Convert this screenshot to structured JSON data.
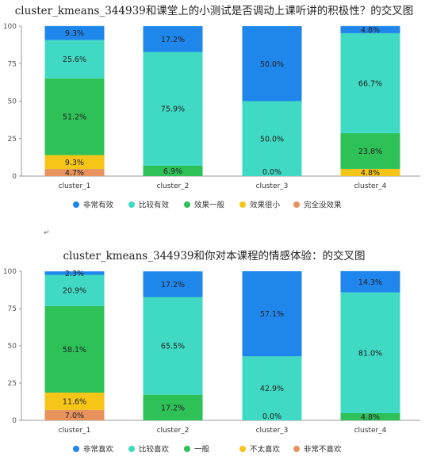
{
  "colors": [
    "#1f86ec",
    "#3fd9c4",
    "#2ec158",
    "#f5c518",
    "#e7935b"
  ],
  "between_text": "↵",
  "chart_data": [
    {
      "type": "bar",
      "stacked": true,
      "title": "cluster_kmeans_344939和课堂上的小测试是否调动上课听讲的积极性？的交叉图",
      "categories": [
        "cluster_1",
        "cluster_2",
        "cluster_3",
        "cluster_4"
      ],
      "ylim": [
        0,
        100
      ],
      "yticks": [
        0,
        25,
        50,
        75,
        100
      ],
      "grid": false,
      "legend": "bottom",
      "series": [
        {
          "name": "非常有效",
          "values": [
            9.3,
            17.2,
            50.0,
            4.8
          ]
        },
        {
          "name": "比较有效",
          "values": [
            25.6,
            75.9,
            50.0,
            66.7
          ]
        },
        {
          "name": "效果一般",
          "values": [
            51.2,
            6.9,
            0.0,
            23.8
          ]
        },
        {
          "name": "效果很小",
          "values": [
            9.3,
            0.0,
            0.0,
            4.8
          ]
        },
        {
          "name": "完全没效果",
          "values": [
            4.7,
            0.0,
            0.0,
            0.0
          ]
        }
      ]
    },
    {
      "type": "bar",
      "stacked": true,
      "title": "cluster_kmeans_344939和你对本课程的情感体验：的交叉图",
      "categories": [
        "cluster_1",
        "cluster_2",
        "cluster_3",
        "cluster_4"
      ],
      "ylim": [
        0,
        100
      ],
      "yticks": [
        0,
        25,
        50,
        75,
        100
      ],
      "grid": false,
      "legend": "bottom",
      "series": [
        {
          "name": "非常喜欢",
          "values": [
            2.3,
            17.2,
            57.1,
            14.3
          ]
        },
        {
          "name": "比较喜欢",
          "values": [
            20.9,
            65.5,
            42.9,
            81.0
          ]
        },
        {
          "name": "一般",
          "values": [
            58.1,
            17.2,
            0.0,
            4.8
          ]
        },
        {
          "name": "不太喜欢",
          "values": [
            11.6,
            0.0,
            0.0,
            0.0
          ]
        },
        {
          "name": "非常不喜欢",
          "values": [
            7.0,
            0.0,
            0.0,
            0.0
          ]
        }
      ]
    }
  ]
}
